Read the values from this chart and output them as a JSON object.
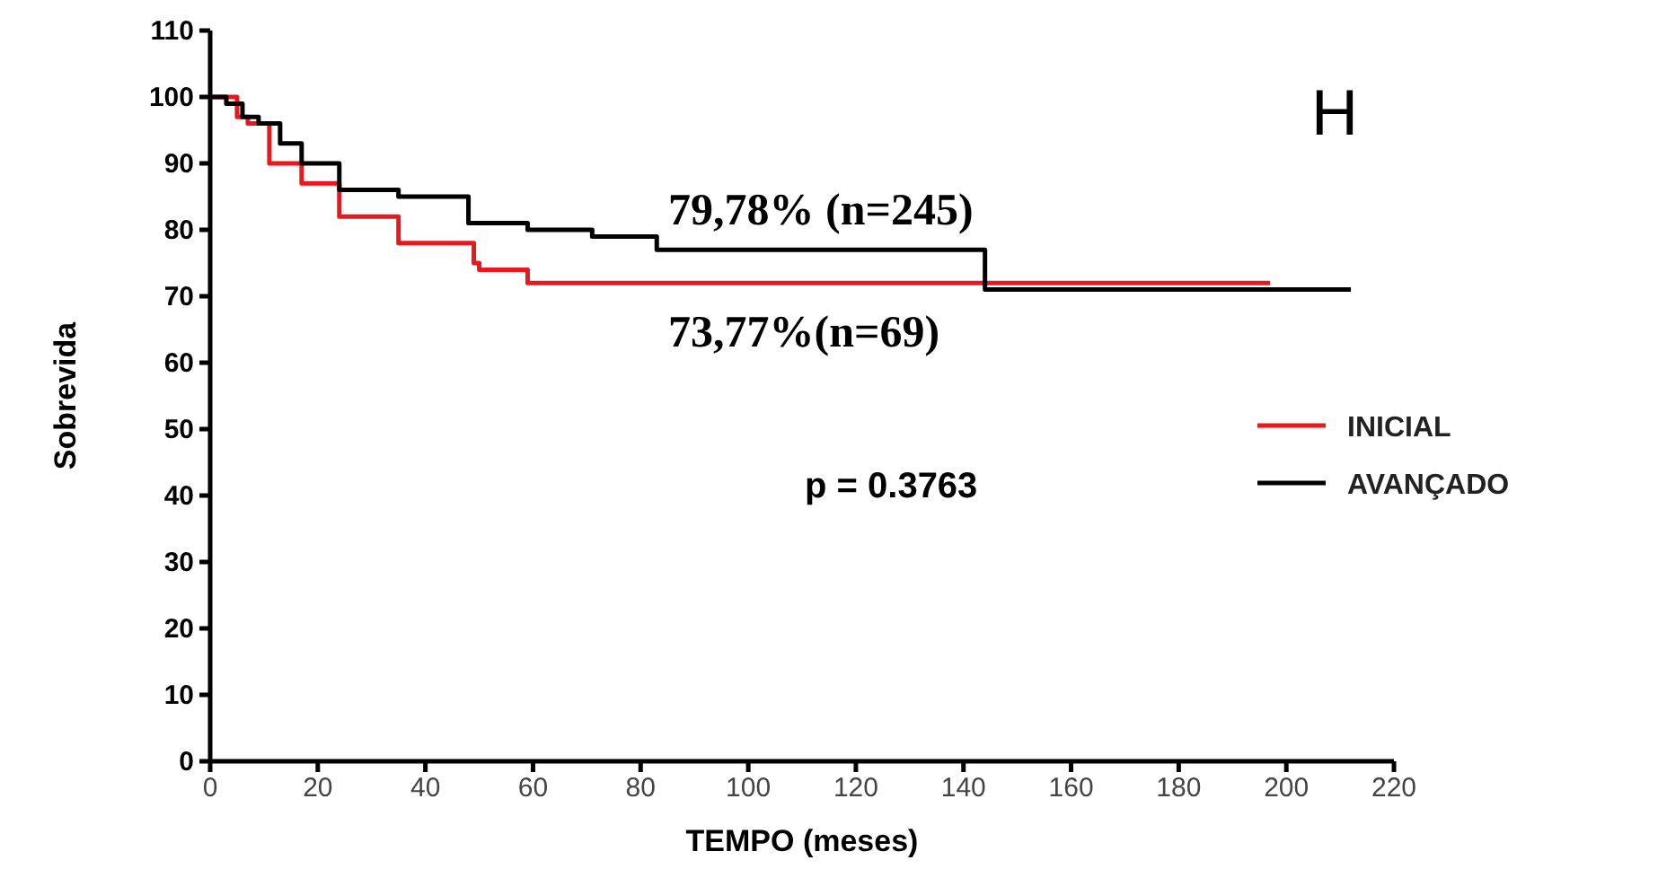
{
  "chart_data": {
    "type": "step",
    "xlabel": "TEMPO (meses)",
    "ylabel": "Sobrevida",
    "xlim": [
      0,
      220
    ],
    "xticks": [
      0,
      20,
      40,
      60,
      80,
      100,
      120,
      140,
      160,
      180,
      200,
      220
    ],
    "ylim": [
      0,
      110
    ],
    "yticks": [
      0,
      10,
      20,
      30,
      40,
      50,
      60,
      70,
      80,
      90,
      100,
      110
    ],
    "legend": "right",
    "grid": false,
    "series": [
      {
        "name": "INICIAL",
        "color": "#e8191e",
        "x": [
          0,
          5,
          7,
          11,
          17,
          24,
          35,
          49,
          50,
          59,
          197
        ],
        "values": [
          100,
          97,
          96,
          90,
          87,
          82,
          78,
          75,
          74,
          72,
          72
        ]
      },
      {
        "name": "AVANÇADO",
        "color": "#000000",
        "x": [
          0,
          3,
          6,
          9,
          13,
          17,
          24,
          35,
          48,
          59,
          71,
          83,
          144,
          212
        ],
        "values": [
          100,
          99,
          97,
          96,
          93,
          90,
          86,
          85,
          81,
          80,
          79,
          77,
          71,
          71
        ]
      }
    ],
    "annotations": [
      "79,78% (n=245)",
      "73,77%(n=69)",
      "p = 0.3763",
      "H"
    ]
  }
}
